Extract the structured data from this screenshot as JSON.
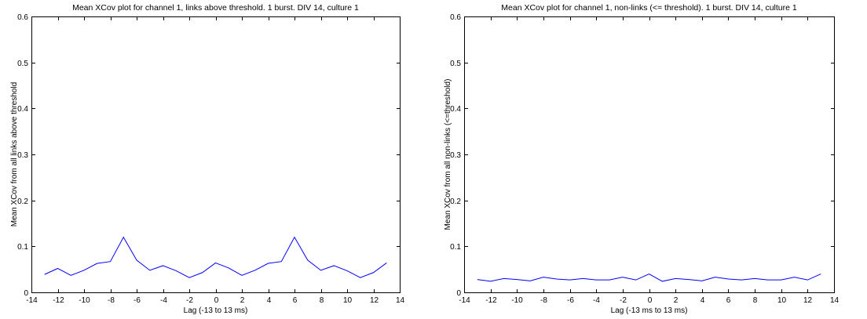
{
  "chart_data": [
    {
      "type": "line",
      "title": "Mean XCov plot for channel 1, links above threshold. 1 burst. DIV 14, culture 1",
      "xlabel": "Lag (-13 to 13 ms)",
      "ylabel": "Mean XCov from all links above threshold",
      "xlim": [
        -14,
        14
      ],
      "ylim": [
        0,
        0.6
      ],
      "xticks": [
        "-14",
        "-12",
        "-10",
        "-8",
        "-6",
        "-4",
        "-2",
        "0",
        "2",
        "4",
        "6",
        "8",
        "10",
        "12",
        "14"
      ],
      "yticks": [
        "0",
        "0.1",
        "0.2",
        "0.3",
        "0.4",
        "0.5",
        "0.6"
      ],
      "grid": false,
      "series": [
        {
          "color": "#0000ff",
          "x": [
            -13,
            -12,
            -11,
            -10,
            -9,
            -8,
            -7,
            -6,
            -5,
            -4,
            -3,
            -2,
            -1,
            0,
            1,
            2,
            3,
            4,
            5,
            6,
            7,
            8,
            9,
            10,
            11,
            12,
            13
          ],
          "values": [
            0.039,
            0.052,
            0.037,
            0.048,
            0.063,
            0.067,
            0.12,
            0.07,
            0.048,
            0.058,
            0.047,
            0.032,
            0.043,
            0.064,
            0.053,
            0.037,
            0.048,
            0.063,
            0.067,
            0.12,
            0.07,
            0.048,
            0.058,
            0.047,
            0.032,
            0.043,
            0.064
          ]
        }
      ]
    },
    {
      "type": "line",
      "title": "Mean XCov plot for channel 1, non-links (<= threshold). 1 burst. DIV 14, culture 1",
      "xlabel": "Lag (-13 ms to 13 ms)",
      "ylabel": "Mean XCov from all non-links (<=threshold)",
      "xlim": [
        -14,
        14
      ],
      "ylim": [
        0,
        0.6
      ],
      "xticks": [
        "-14",
        "-12",
        "-10",
        "-8",
        "-6",
        "-4",
        "-2",
        "0",
        "2",
        "4",
        "6",
        "8",
        "10",
        "12",
        "14"
      ],
      "yticks": [
        "0",
        "0.1",
        "0.2",
        "0.3",
        "0.4",
        "0.5",
        "0.6"
      ],
      "grid": false,
      "series": [
        {
          "color": "#0000ff",
          "x": [
            -13,
            -12,
            -11,
            -10,
            -9,
            -8,
            -7,
            -6,
            -5,
            -4,
            -3,
            -2,
            -1,
            0,
            1,
            2,
            3,
            4,
            5,
            6,
            7,
            8,
            9,
            10,
            11,
            12,
            13
          ],
          "values": [
            0.028,
            0.024,
            0.03,
            0.028,
            0.025,
            0.033,
            0.029,
            0.027,
            0.03,
            0.027,
            0.027,
            0.033,
            0.027,
            0.04,
            0.024,
            0.03,
            0.028,
            0.025,
            0.033,
            0.029,
            0.027,
            0.03,
            0.027,
            0.027,
            0.033,
            0.027,
            0.04
          ]
        }
      ]
    }
  ]
}
